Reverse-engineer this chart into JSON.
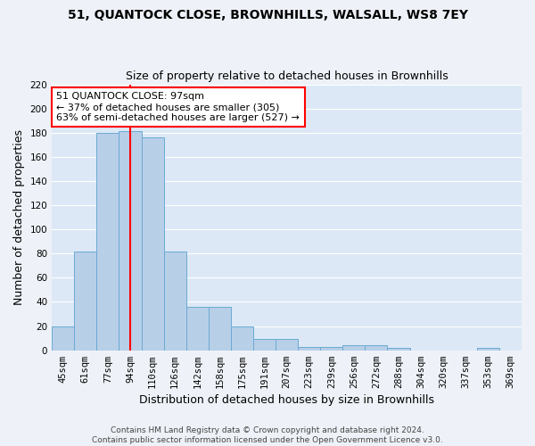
{
  "title1": "51, QUANTOCK CLOSE, BROWNHILLS, WALSALL, WS8 7EY",
  "title2": "Size of property relative to detached houses in Brownhills",
  "xlabel": "Distribution of detached houses by size in Brownhills",
  "ylabel": "Number of detached properties",
  "categories": [
    "45sqm",
    "61sqm",
    "77sqm",
    "94sqm",
    "110sqm",
    "126sqm",
    "142sqm",
    "158sqm",
    "175sqm",
    "191sqm",
    "207sqm",
    "223sqm",
    "239sqm",
    "256sqm",
    "272sqm",
    "288sqm",
    "304sqm",
    "320sqm",
    "337sqm",
    "353sqm",
    "369sqm"
  ],
  "values": [
    20,
    82,
    180,
    181,
    176,
    82,
    36,
    36,
    20,
    9,
    9,
    3,
    3,
    4,
    4,
    2,
    0,
    0,
    0,
    2,
    0
  ],
  "bar_color": "#b8cfe8",
  "bar_edge_color": "#6aaad4",
  "vline_x": 3.0,
  "vline_color": "red",
  "annotation_text": "51 QUANTOCK CLOSE: 97sqm\n← 37% of detached houses are smaller (305)\n63% of semi-detached houses are larger (527) →",
  "annotation_box_color": "white",
  "annotation_box_edge": "red",
  "ylim": [
    0,
    220
  ],
  "yticks": [
    0,
    20,
    40,
    60,
    80,
    100,
    120,
    140,
    160,
    180,
    200,
    220
  ],
  "fig_bg_color": "#eef2f8",
  "ax_bg_color": "#dce8f5",
  "grid_color": "white",
  "footer": "Contains HM Land Registry data © Crown copyright and database right 2024.\nContains public sector information licensed under the Open Government Licence v3.0.",
  "title1_fontsize": 10,
  "title2_fontsize": 9,
  "ylabel_fontsize": 9,
  "xlabel_fontsize": 9,
  "tick_fontsize": 7.5,
  "annot_fontsize": 8
}
